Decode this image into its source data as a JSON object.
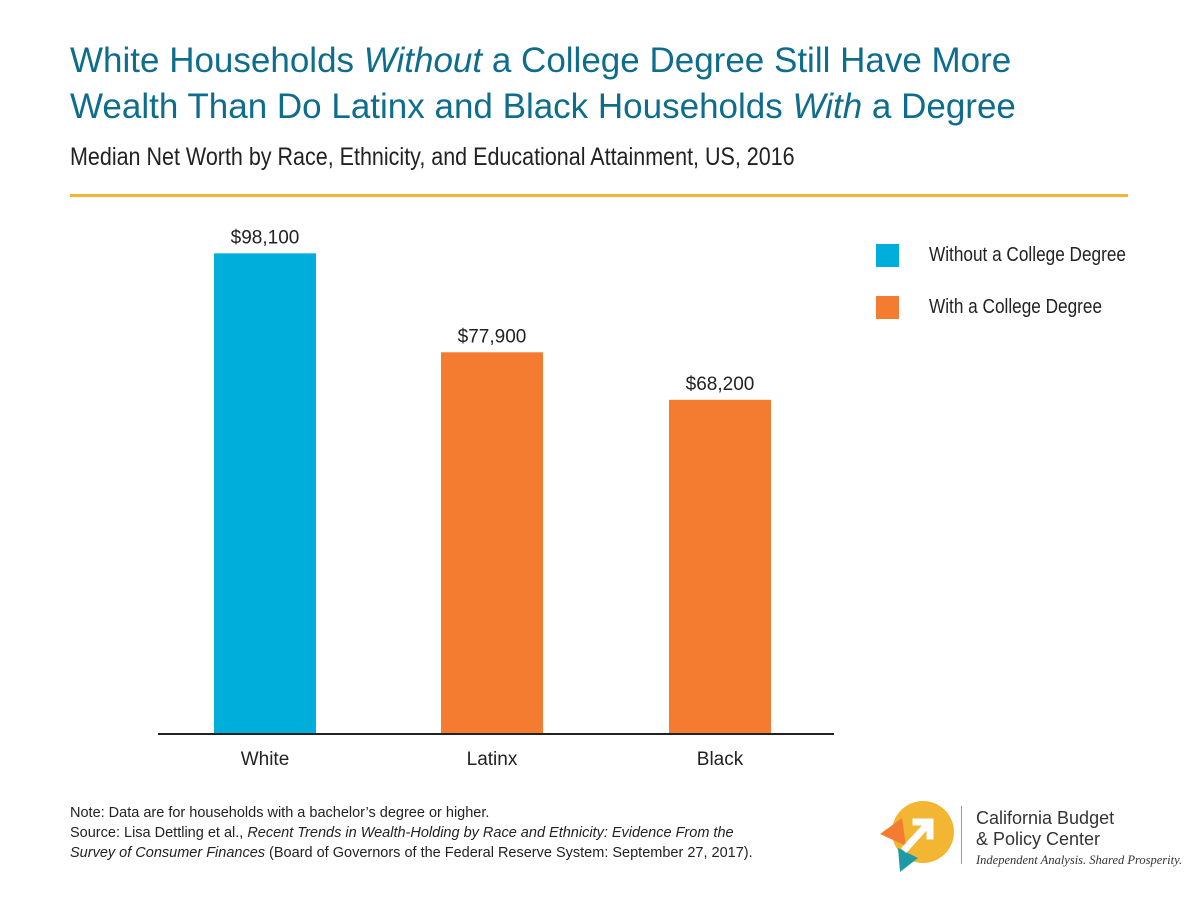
{
  "title": {
    "p1": "White Households ",
    "p2": "Without",
    "p3": " a College Degree Still Have More",
    "p4": "Wealth Than Do Latinx and Black Households ",
    "p5": "With",
    "p6": " a Degree"
  },
  "subtitle": "Median Net Worth by Race, Ethnicity, and Educational Attainment, US, 2016",
  "colors": {
    "accent": "#f2b632",
    "title": "#0e6d8c",
    "without": "#00aedb",
    "with": "#f47c30"
  },
  "legend": [
    {
      "label": "Without a College Degree",
      "color": "#00aedb"
    },
    {
      "label": "With a College Degree",
      "color": "#f47c30"
    }
  ],
  "chart_data": {
    "type": "bar",
    "categories": [
      "White",
      "Latinx",
      "Black"
    ],
    "values": [
      98100,
      77900,
      68200
    ],
    "labels": [
      "$98,100",
      "$77,900",
      "$68,200"
    ],
    "series_index": [
      0,
      1,
      1
    ],
    "ylim": [
      0,
      100000
    ],
    "grid": false,
    "legend_position": "top-right",
    "xlabel": "",
    "ylabel": ""
  },
  "note": {
    "line1": "Note: Data are for households with a bachelor’s degree or higher.",
    "src1": "Source: Lisa Dettling et al., ",
    "src_title1": "Recent Trends in Wealth-Holding by Race and Ethnicity: Evidence From the",
    "src_title2": "Survey of Consumer Finances",
    "src2": " (Board of Governors of the Federal Reserve System: September 27, 2017)."
  },
  "logo": {
    "line1": "California Budget",
    "line2": "& Policy Center",
    "tagline": "Independent Analysis. Shared Prosperity."
  }
}
